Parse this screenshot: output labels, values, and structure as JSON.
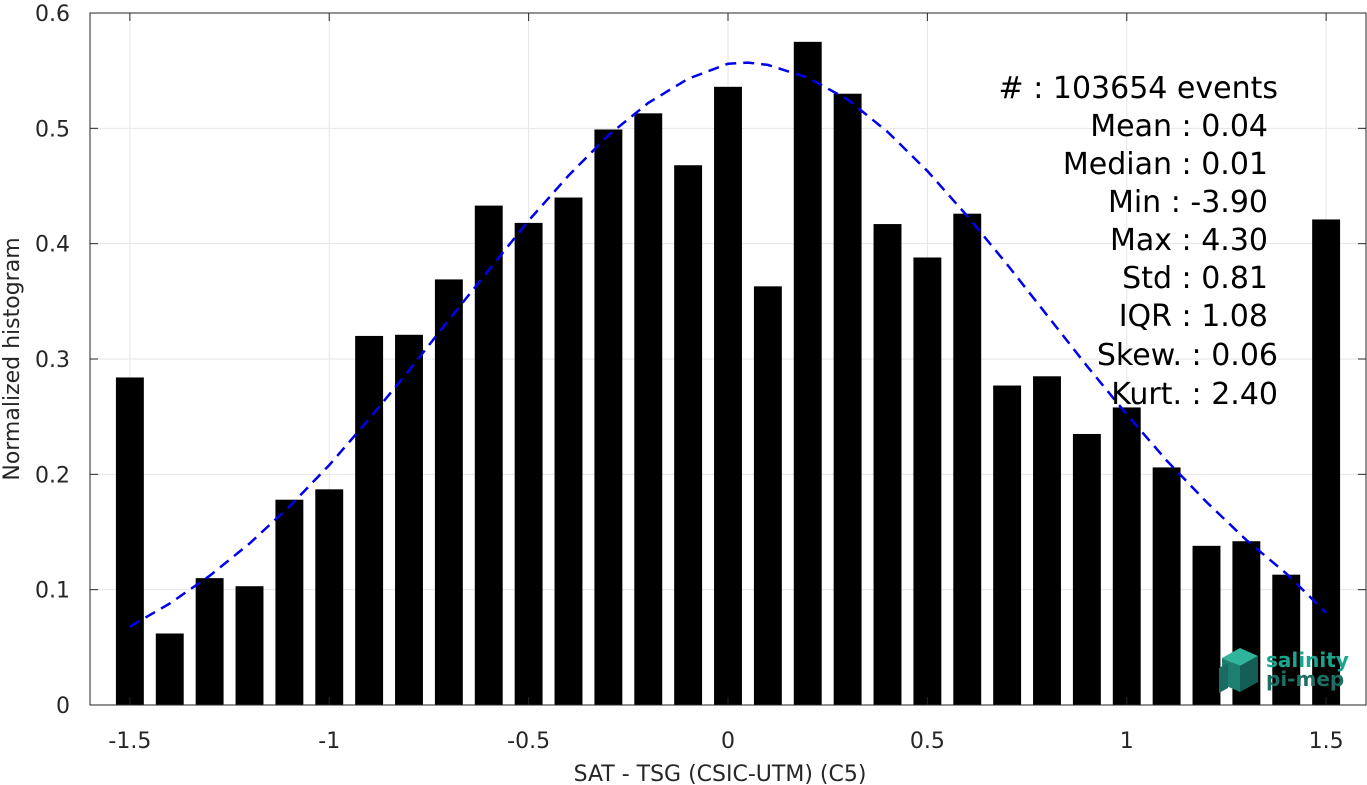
{
  "chart_data": {
    "type": "bar",
    "title": "",
    "xlabel": "SAT - TSG (CSIC-UTM) (C5)",
    "ylabel": "Normalized histogram",
    "xlim": [
      -1.6,
      1.6
    ],
    "ylim": [
      0,
      0.6
    ],
    "xticks": [
      -1.5,
      -1,
      -0.5,
      0,
      0.5,
      1,
      1.5
    ],
    "xtick_labels": [
      "-1.5",
      "-1",
      "-0.5",
      "0",
      "0.5",
      "1",
      "1.5"
    ],
    "yticks": [
      0,
      0.1,
      0.2,
      0.3,
      0.4,
      0.5,
      0.6
    ],
    "ytick_labels": [
      "0",
      "0.1",
      "0.2",
      "0.3",
      "0.4",
      "0.5",
      "0.6"
    ],
    "grid": true,
    "bar_color": "#000000",
    "fit_color": "#0000ee",
    "x": [
      -1.5,
      -1.4,
      -1.3,
      -1.2,
      -1.1,
      -1.0,
      -0.9,
      -0.8,
      -0.7,
      -0.6,
      -0.5,
      -0.4,
      -0.3,
      -0.2,
      -0.1,
      0.0,
      0.1,
      0.2,
      0.3,
      0.4,
      0.5,
      0.6,
      0.7,
      0.8,
      0.9,
      1.0,
      1.1,
      1.2,
      1.3,
      1.4,
      1.5
    ],
    "values": [
      0.284,
      0.062,
      0.11,
      0.103,
      0.178,
      0.187,
      0.32,
      0.321,
      0.369,
      0.433,
      0.418,
      0.44,
      0.499,
      0.513,
      0.468,
      0.536,
      0.363,
      0.575,
      0.53,
      0.417,
      0.388,
      0.426,
      0.277,
      0.285,
      0.235,
      0.258,
      0.206,
      0.138,
      0.142,
      0.113,
      0.421
    ],
    "fit": {
      "type": "gaussian",
      "x": [
        -1.5,
        -1.4,
        -1.3,
        -1.2,
        -1.1,
        -1.0,
        -0.9,
        -0.8,
        -0.7,
        -0.6,
        -0.5,
        -0.4,
        -0.3,
        -0.2,
        -0.1,
        0.0,
        0.05,
        0.1,
        0.2,
        0.3,
        0.4,
        0.5,
        0.6,
        0.7,
        0.8,
        0.9,
        1.0,
        1.1,
        1.2,
        1.3,
        1.4,
        1.5
      ],
      "y": [
        0.068,
        0.088,
        0.112,
        0.14,
        0.172,
        0.208,
        0.248,
        0.29,
        0.334,
        0.377,
        0.42,
        0.459,
        0.494,
        0.522,
        0.543,
        0.556,
        0.557,
        0.555,
        0.544,
        0.525,
        0.497,
        0.463,
        0.424,
        0.382,
        0.338,
        0.294,
        0.252,
        0.212,
        0.176,
        0.143,
        0.114,
        0.08
      ]
    }
  },
  "stats": [
    {
      "label": "#  : 103654 events"
    },
    {
      "label": "Mean : 0.04"
    },
    {
      "label": "Median : 0.01"
    },
    {
      "label": "Min : -3.90"
    },
    {
      "label": "Max : 4.30"
    },
    {
      "label": "Std : 0.81"
    },
    {
      "label": "IQR : 1.08"
    },
    {
      "label": "Skew. : 0.06"
    },
    {
      "label": "Kurt. : 2.40"
    }
  ],
  "logo": {
    "line1": "salinity",
    "line2": "pi-mep",
    "color1": "#1aa58c",
    "color2": "#1f6e63"
  }
}
